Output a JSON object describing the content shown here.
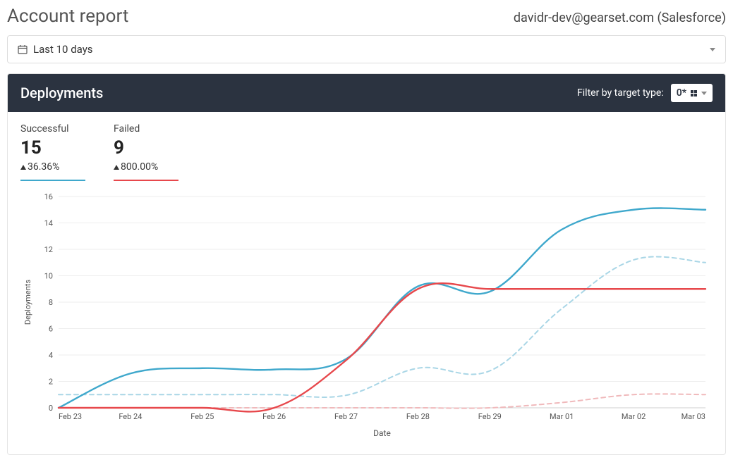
{
  "header": {
    "title": "Account report",
    "account": "davidr-dev@gearset.com (Salesforce)"
  },
  "date_range": {
    "label": "Last 10 days"
  },
  "panel": {
    "title": "Deployments",
    "filter_label": "Filter by target type:",
    "filter_value": "0*"
  },
  "stats": {
    "successful": {
      "label": "Successful",
      "value": "15",
      "change": "36.36%",
      "underline_color": "#3fa8cc"
    },
    "failed": {
      "label": "Failed",
      "value": "9",
      "change": "800.00%",
      "underline_color": "#e7484c"
    }
  },
  "chart": {
    "type": "line",
    "ylabel": "Deployments",
    "xlabel": "Date",
    "ylim": [
      0,
      16
    ],
    "ytick_step": 2,
    "x_categories": [
      "Feb 23",
      "Feb 24",
      "Feb 25",
      "Feb 26",
      "Feb 27",
      "Feb 28",
      "Feb 29",
      "Mar 01",
      "Mar 02",
      "Mar 03"
    ],
    "grid_color": "#eeeeee",
    "background_color": "#ffffff",
    "axis_font_size": 11,
    "series": [
      {
        "name": "successful",
        "color": "#3fa8cc",
        "dash": "none",
        "width": 2.4,
        "values": [
          0,
          2.6,
          3.0,
          2.9,
          3.7,
          9.2,
          8.8,
          13.5,
          15.0,
          15.0
        ]
      },
      {
        "name": "failed",
        "color": "#e7484c",
        "dash": "none",
        "width": 2.4,
        "values": [
          0,
          0,
          0,
          0,
          3.6,
          9.0,
          9.0,
          9.0,
          9.0,
          9.0
        ]
      },
      {
        "name": "successful_prev",
        "color": "#a9d6e6",
        "dash": "6,5",
        "width": 2,
        "values": [
          1.0,
          1.0,
          1.0,
          1.0,
          0.95,
          3.0,
          2.8,
          7.5,
          11.2,
          11.0
        ]
      },
      {
        "name": "failed_prev",
        "color": "#f0b9bb",
        "dash": "6,5",
        "width": 2,
        "values": [
          0,
          0,
          0,
          0,
          0,
          0,
          0,
          0.4,
          1.0,
          1.0
        ]
      }
    ]
  }
}
